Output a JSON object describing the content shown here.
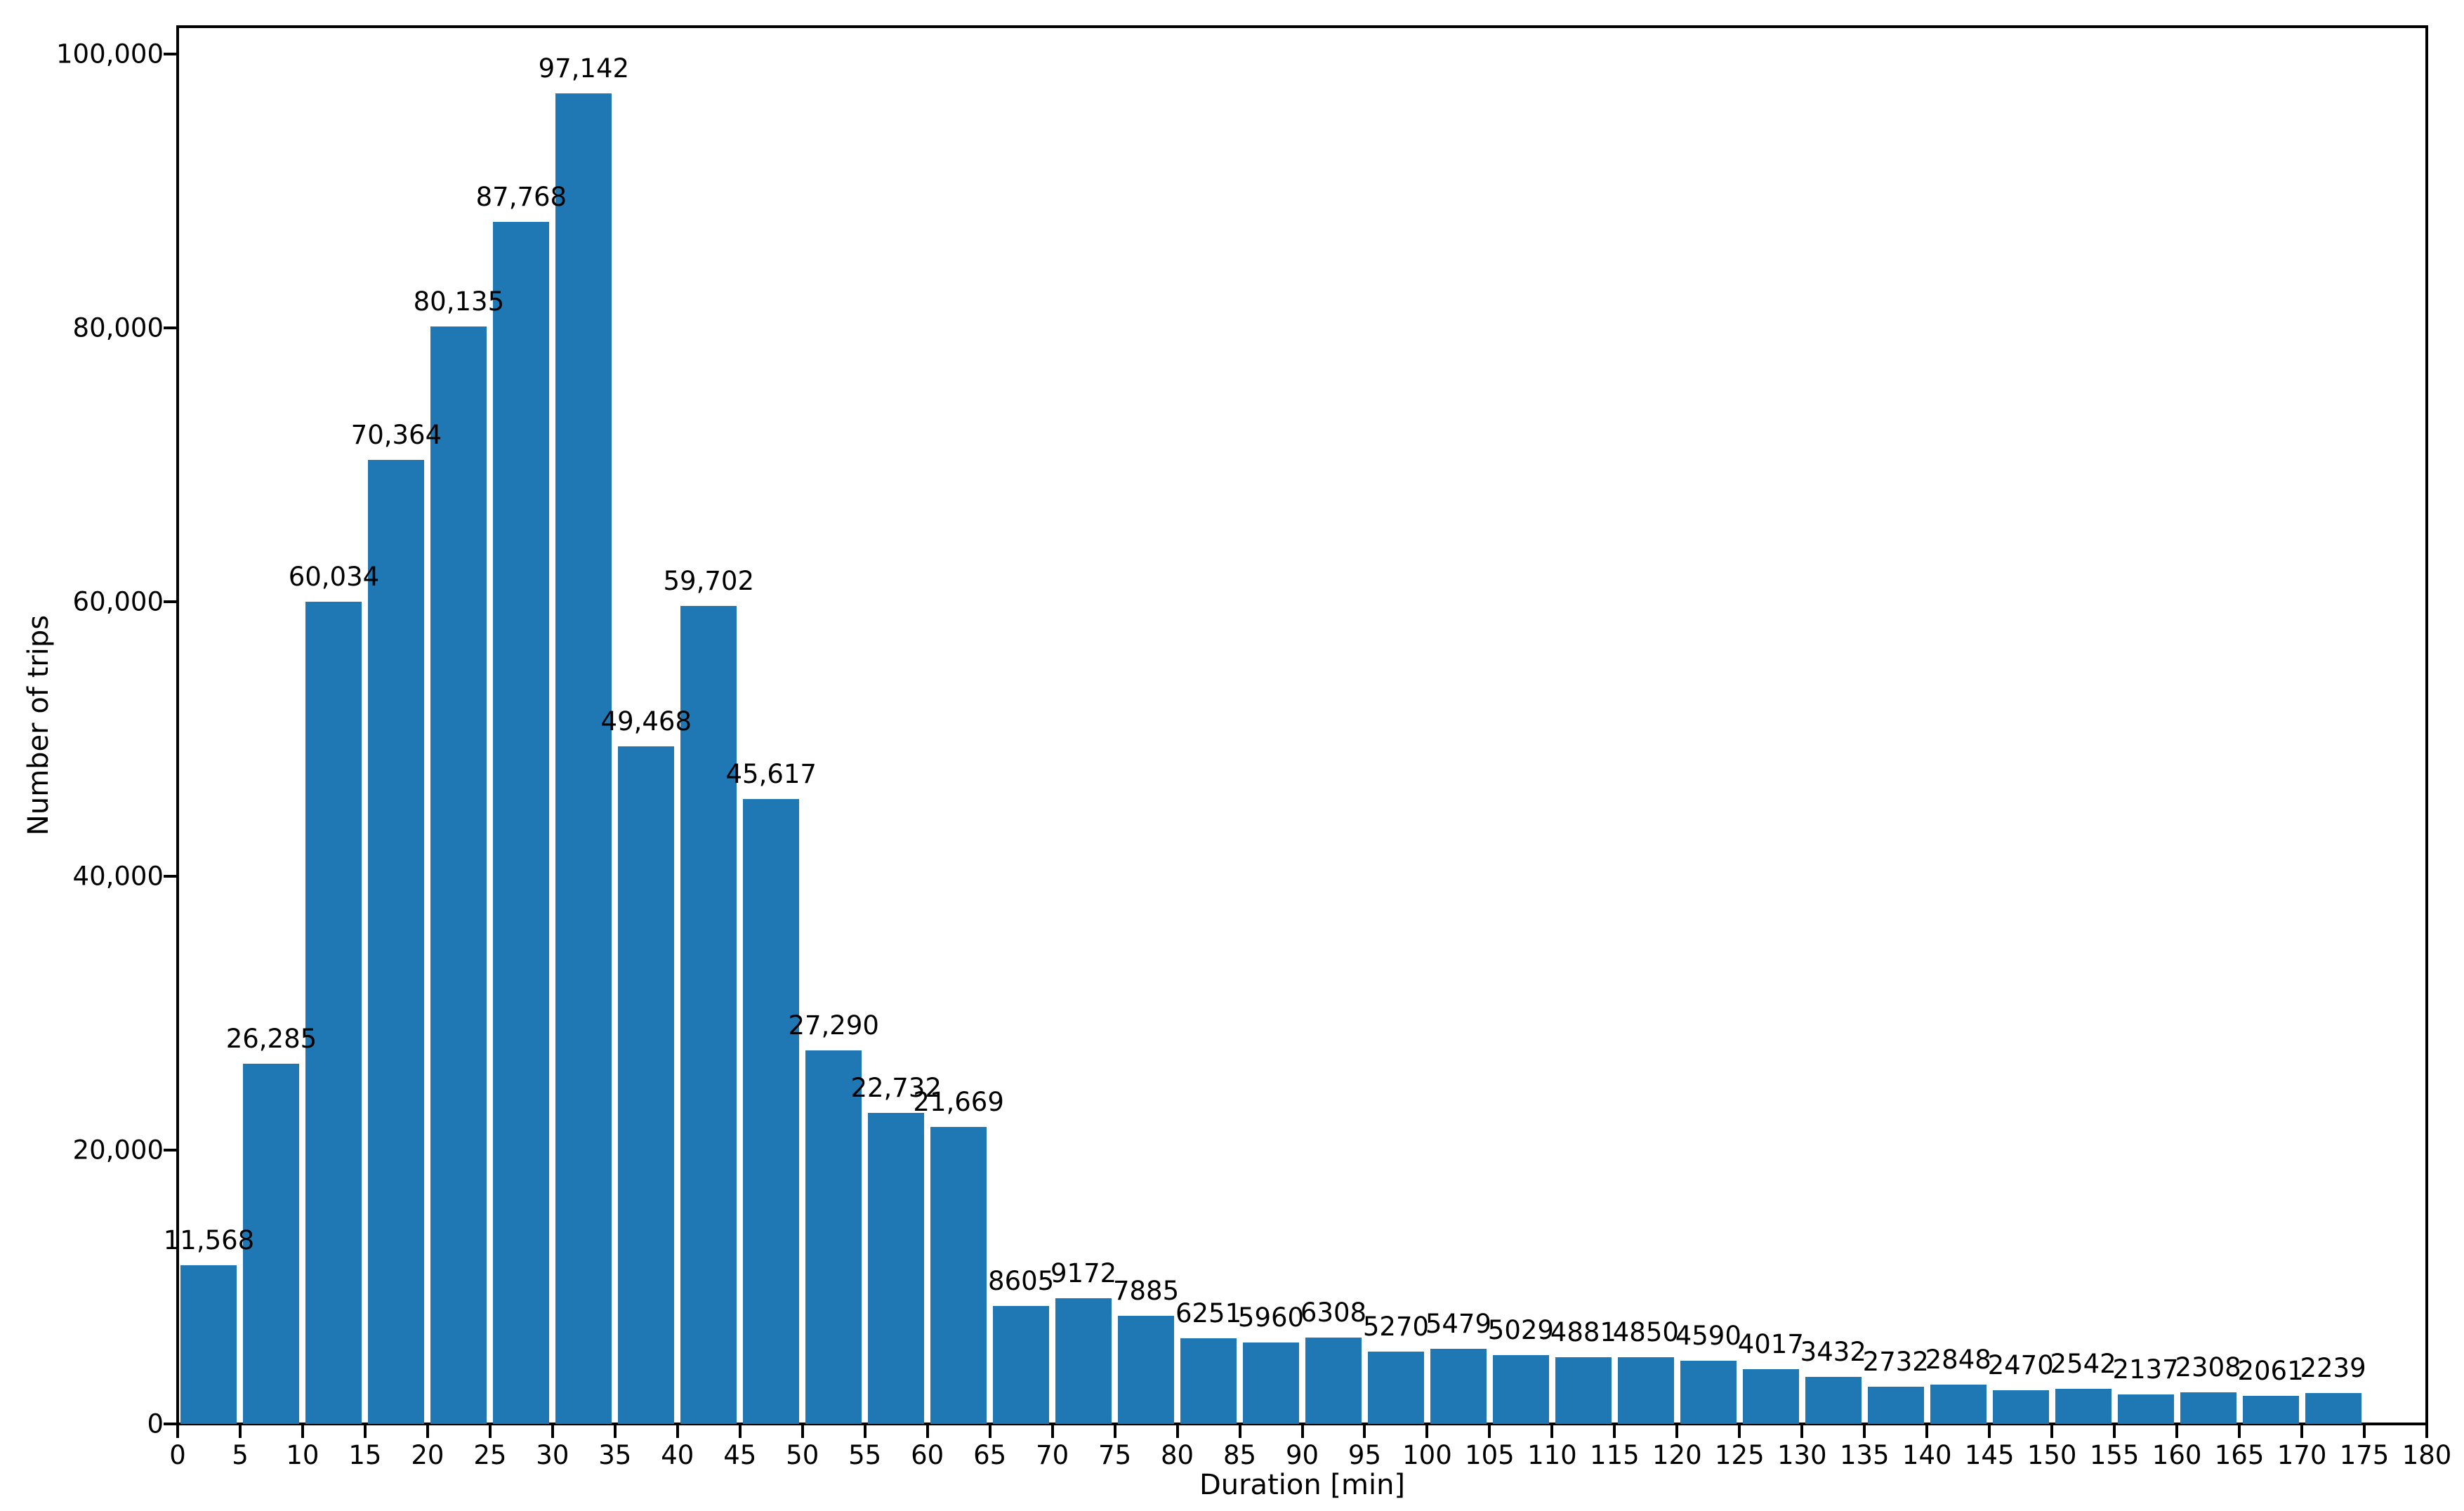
{
  "chart_data": {
    "type": "bar",
    "title": "",
    "xlabel": "Duration [min]",
    "ylabel": "Number of trips",
    "bin_start": 0,
    "bin_width": 5,
    "values": [
      11568,
      26285,
      60034,
      70364,
      80135,
      87768,
      97142,
      49468,
      59702,
      45617,
      27290,
      22732,
      21669,
      8605,
      9172,
      7885,
      6251,
      5960,
      6308,
      5270,
      5479,
      5029,
      4881,
      4850,
      4590,
      4017,
      3432,
      2732,
      2848,
      2470,
      2542,
      2137,
      2308,
      2061,
      2239
    ],
    "bar_value_labels": [
      "11,568",
      "26,285",
      "60,034",
      "70,364",
      "80,135",
      "87,768",
      "97,142",
      "49,468",
      "59,702",
      "45,617",
      "27,290",
      "22,732",
      "21,669",
      "8605",
      "9172",
      "7885",
      "6251",
      "5960",
      "6308",
      "5270",
      "5479",
      "5029",
      "4881",
      "4850",
      "4590",
      "4017",
      "3432",
      "2732",
      "2848",
      "2470",
      "2542",
      "2137",
      "2308",
      "2061",
      "2239"
    ],
    "x_tick_values": [
      0,
      5,
      10,
      15,
      20,
      25,
      30,
      35,
      40,
      45,
      50,
      55,
      60,
      65,
      70,
      75,
      80,
      85,
      90,
      95,
      100,
      105,
      110,
      115,
      120,
      125,
      130,
      135,
      140,
      145,
      150,
      155,
      160,
      165,
      170,
      175,
      180
    ],
    "x_tick_labels": [
      "0",
      "5",
      "10",
      "15",
      "20",
      "25",
      "30",
      "35",
      "40",
      "45",
      "50",
      "55",
      "60",
      "65",
      "70",
      "75",
      "80",
      "85",
      "90",
      "95",
      "100",
      "105",
      "110",
      "115",
      "120",
      "125",
      "130",
      "135",
      "140",
      "145",
      "150",
      "155",
      "160",
      "165",
      "170",
      "175",
      "180"
    ],
    "y_tick_values": [
      0,
      20000,
      40000,
      60000,
      80000,
      100000
    ],
    "y_tick_labels": [
      "0",
      "20,000",
      "40,000",
      "60,000",
      "80,000",
      "100,000"
    ],
    "xlim": [
      0,
      180
    ],
    "ylim": [
      0,
      102000
    ],
    "grid": false,
    "legend": "none",
    "bar_color": "#1f77b4",
    "axis_color": "#000000"
  }
}
